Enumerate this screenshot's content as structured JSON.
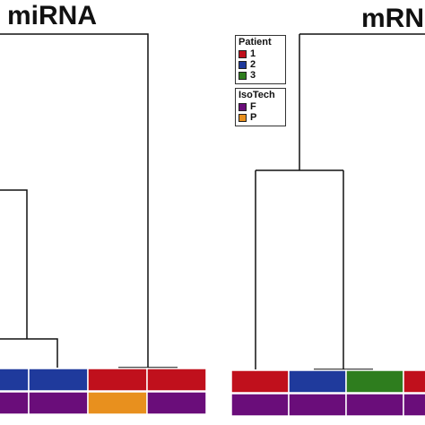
{
  "titles": {
    "left": "miRNA",
    "right": "mRN"
  },
  "legend": {
    "patient": {
      "header": "Patient",
      "items": [
        {
          "label": "1",
          "color": "#c0101c"
        },
        {
          "label": "2",
          "color": "#1f3a9c"
        },
        {
          "label": "3",
          "color": "#2e7d1e"
        }
      ]
    },
    "isotech": {
      "header": "IsoTech",
      "items": [
        {
          "label": "F",
          "color": "#6a0d7a"
        },
        {
          "label": "P",
          "color": "#e8901e"
        }
      ]
    }
  },
  "color_bars": {
    "left_patient": [
      "2",
      "2",
      "1",
      "1"
    ],
    "left_isotech": [
      "F",
      "F",
      "P",
      "F"
    ],
    "right_patient": [
      "1",
      "2",
      "3",
      "1"
    ],
    "right_isotech": [
      "F",
      "F",
      "F",
      "F"
    ]
  }
}
